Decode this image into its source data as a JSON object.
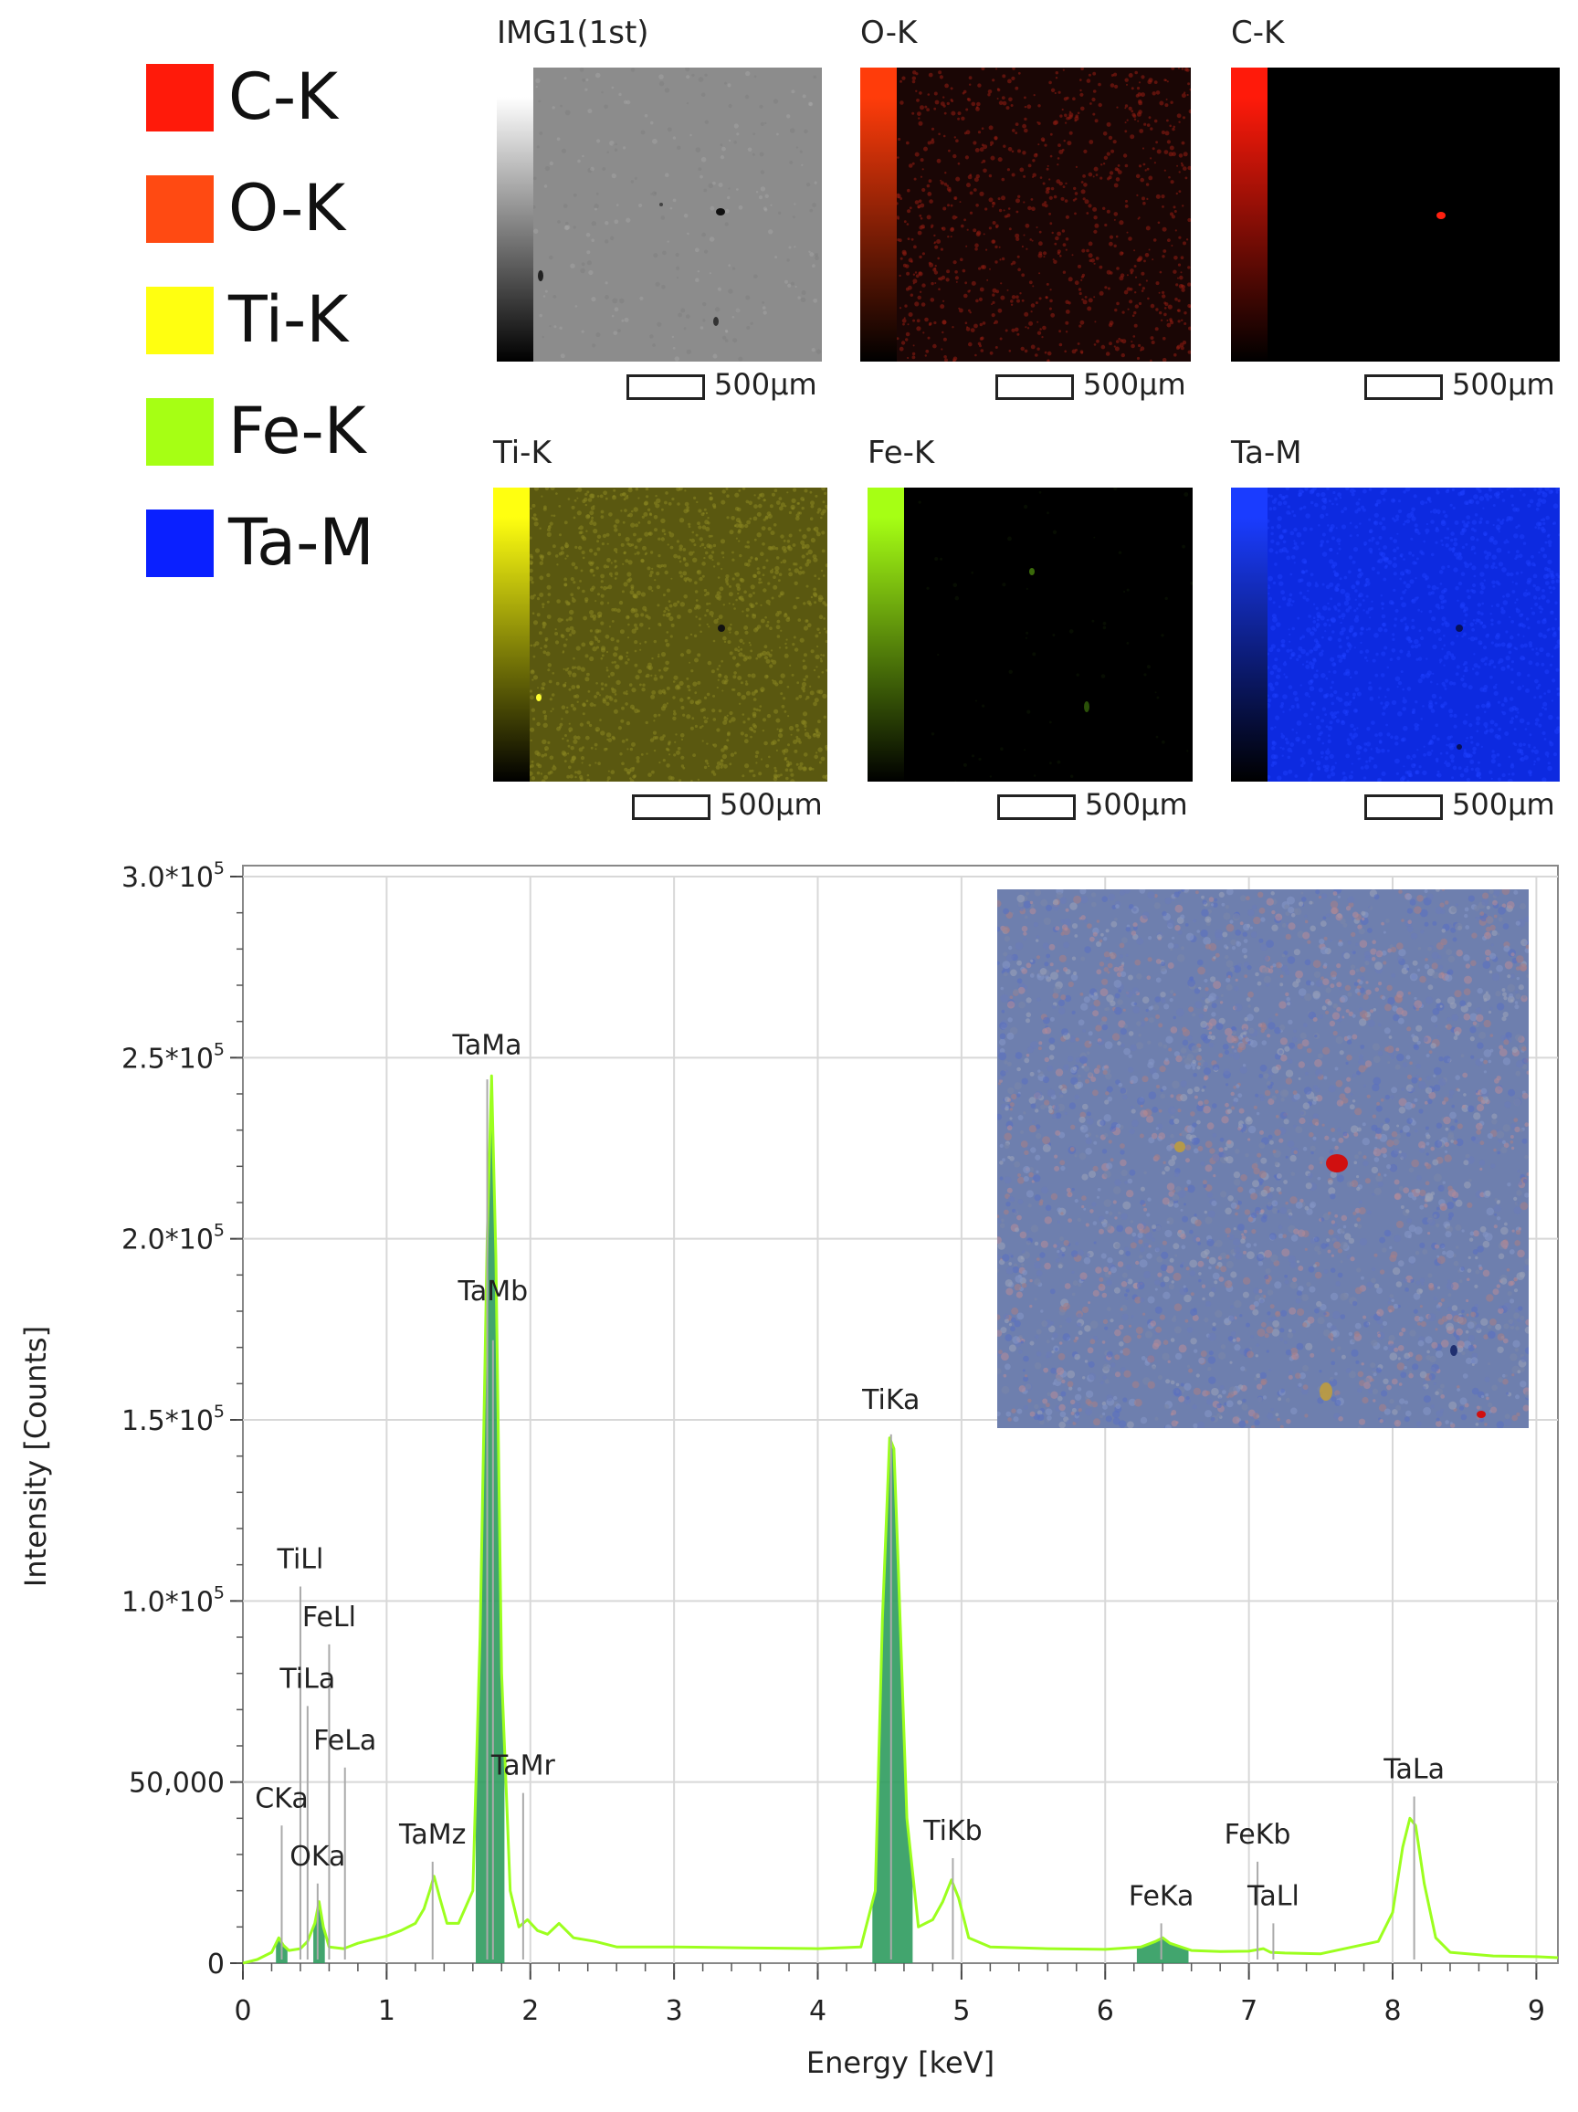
{
  "legend": [
    {
      "label": "C-K",
      "color": "#ff1a0a"
    },
    {
      "label": "O-K",
      "color": "#ff4a12"
    },
    {
      "label": "Ti-K",
      "color": "#ffff10"
    },
    {
      "label": "Fe-K",
      "color": "#a6ff14"
    },
    {
      "label": "Ta-M",
      "color": "#0a20ff"
    }
  ],
  "maps": [
    {
      "title": "IMG1(1st)",
      "scale_label": "500µm",
      "bar_color": "#ffffff",
      "bg": "#8c8c8c",
      "fg": "#9a9a9a"
    },
    {
      "title": "O-K",
      "scale_label": "500µm",
      "bar_color": "#ff3c0a",
      "bg": "#1a0605",
      "fg": "#8a1a10"
    },
    {
      "title": "C-K",
      "scale_label": "500µm",
      "bar_color": "#ff1a0a",
      "bg": "#000000",
      "fg": "#000000"
    },
    {
      "title": "Ti-K",
      "scale_label": "500µm",
      "bar_color": "#ffff10",
      "bg": "#5a5810",
      "fg": "#8a8620"
    },
    {
      "title": "Fe-K",
      "scale_label": "500µm",
      "bar_color": "#a6ff14",
      "bg": "#000000",
      "fg": "#0c1604"
    },
    {
      "title": "Ta-M",
      "scale_label": "500µm",
      "bar_color": "#1a3cff",
      "bg": "#0d2ae0",
      "fg": "#1e40ff"
    }
  ],
  "chart_data": {
    "type": "line",
    "xlabel": "Energy [keV]",
    "ylabel": "Intensity [Counts]",
    "xlim": [
      0,
      9.15
    ],
    "ylim": [
      0,
      300000
    ],
    "x_ticks": [
      0,
      1,
      2,
      3,
      4,
      5,
      6,
      7,
      8,
      9
    ],
    "y_ticks": [
      {
        "value": 0,
        "label": "0"
      },
      {
        "value": 50000,
        "label": "50,000"
      },
      {
        "value": 100000,
        "label": "1.0*10",
        "exp": "5"
      },
      {
        "value": 150000,
        "label": "1.5*10",
        "exp": "5"
      },
      {
        "value": 200000,
        "label": "2.0*10",
        "exp": "5"
      },
      {
        "value": 250000,
        "label": "2.5*10",
        "exp": "5"
      },
      {
        "value": 300000,
        "label": "3.0*10",
        "exp": "5"
      }
    ],
    "grid": true,
    "line_color": "#9cff1e",
    "fill_color": "#2e9b5e",
    "spectrum_x": [
      0,
      0.1,
      0.2,
      0.25,
      0.28,
      0.32,
      0.4,
      0.45,
      0.5,
      0.53,
      0.56,
      0.6,
      0.7,
      0.8,
      0.9,
      1.0,
      1.1,
      1.2,
      1.26,
      1.3,
      1.33,
      1.37,
      1.42,
      1.5,
      1.6,
      1.65,
      1.7,
      1.73,
      1.76,
      1.8,
      1.86,
      1.92,
      1.98,
      2.05,
      2.12,
      2.2,
      2.3,
      2.45,
      2.6,
      3.0,
      3.5,
      4.0,
      4.3,
      4.4,
      4.45,
      4.5,
      4.53,
      4.56,
      4.62,
      4.7,
      4.8,
      4.87,
      4.93,
      4.98,
      5.05,
      5.2,
      5.6,
      6.0,
      6.25,
      6.35,
      6.4,
      6.45,
      6.6,
      6.8,
      7.0,
      7.1,
      7.15,
      7.25,
      7.5,
      7.9,
      8.0,
      8.07,
      8.12,
      8.16,
      8.22,
      8.3,
      8.4,
      8.7,
      9.0,
      9.15
    ],
    "spectrum_y": [
      0,
      1000,
      3000,
      7000,
      5000,
      3500,
      4000,
      6000,
      11000,
      17000,
      10000,
      4500,
      4000,
      5500,
      6500,
      7500,
      9000,
      11000,
      15000,
      20000,
      24000,
      18000,
      11000,
      11000,
      20000,
      90000,
      200000,
      245000,
      195000,
      80000,
      20000,
      10000,
      12000,
      9000,
      8000,
      11000,
      7000,
      6000,
      4500,
      4500,
      4200,
      4000,
      4500,
      20000,
      95000,
      145000,
      142000,
      110000,
      40000,
      10000,
      12000,
      17000,
      23000,
      18000,
      7000,
      4500,
      4000,
      3800,
      4500,
      6000,
      7000,
      5500,
      3500,
      3200,
      3300,
      4000,
      3000,
      2800,
      2600,
      6000,
      14000,
      32000,
      40000,
      38000,
      22000,
      7000,
      3000,
      2000,
      1800,
      1500
    ],
    "peak_labels": [
      {
        "text": "TaMa",
        "x": 1.7,
        "y_label": 248000,
        "y_line": 244000
      },
      {
        "text": "TaMb",
        "x": 1.74,
        "y_label": 180000,
        "y_line": 172000
      },
      {
        "text": "TiKa",
        "x": 4.51,
        "y_label": 150000,
        "y_line": 146000
      },
      {
        "text": "TiLl",
        "x": 0.4,
        "y_label": 106000,
        "y_line": 104000
      },
      {
        "text": "FeLl",
        "x": 0.6,
        "y_label": 90000,
        "y_line": 88000
      },
      {
        "text": "TiLa",
        "x": 0.45,
        "y_label": 73000,
        "y_line": 71000
      },
      {
        "text": "FeLa",
        "x": 0.71,
        "y_label": 56000,
        "y_line": 54000
      },
      {
        "text": "CKa",
        "x": 0.27,
        "y_label": 40000,
        "y_line": 38000
      },
      {
        "text": "OKa",
        "x": 0.52,
        "y_label": 24000,
        "y_line": 22000
      },
      {
        "text": "TaMz",
        "x": 1.32,
        "y_label": 30000,
        "y_line": 28000
      },
      {
        "text": "TaMr",
        "x": 1.95,
        "y_label": 49000,
        "y_line": 47000
      },
      {
        "text": "TiKb",
        "x": 4.94,
        "y_label": 31000,
        "y_line": 29000
      },
      {
        "text": "FeKa",
        "x": 6.39,
        "y_label": 13000,
        "y_line": 11000
      },
      {
        "text": "FeKb",
        "x": 7.06,
        "y_label": 30000,
        "y_line": 28000
      },
      {
        "text": "TaLl",
        "x": 7.17,
        "y_label": 13000,
        "y_line": 11000
      },
      {
        "text": "TaLa",
        "x": 8.15,
        "y_label": 48000,
        "y_line": 46000
      }
    ],
    "filled_regions": [
      [
        0.23,
        0.31
      ],
      [
        0.49,
        0.57
      ],
      [
        1.62,
        1.82
      ],
      [
        4.38,
        4.66
      ],
      [
        6.22,
        6.58
      ]
    ]
  }
}
